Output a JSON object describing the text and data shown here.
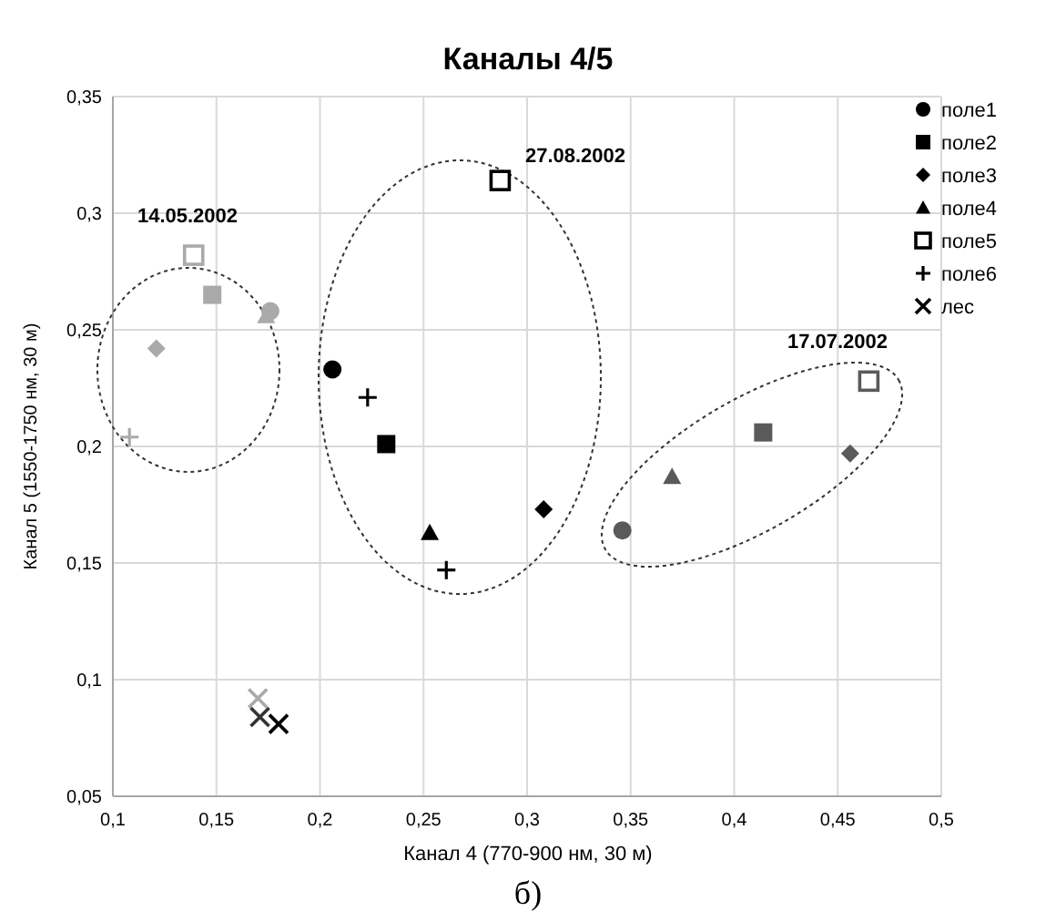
{
  "chart_data": {
    "type": "scatter",
    "title": "Каналы 4/5",
    "xlabel": "Канал 4 (770-900 нм, 30 м)",
    "ylabel": "Канал 5 (1550-1750 нм, 30 м)",
    "xlim": [
      0.1,
      0.5
    ],
    "ylim": [
      0.05,
      0.35
    ],
    "xticks": [
      {
        "value": 0.1,
        "label": "0,1"
      },
      {
        "value": 0.15,
        "label": "0,15"
      },
      {
        "value": 0.2,
        "label": "0,2"
      },
      {
        "value": 0.25,
        "label": "0,25"
      },
      {
        "value": 0.3,
        "label": "0,3"
      },
      {
        "value": 0.35,
        "label": "0,35"
      },
      {
        "value": 0.4,
        "label": "0,4"
      },
      {
        "value": 0.45,
        "label": "0,45"
      },
      {
        "value": 0.5,
        "label": "0,5"
      }
    ],
    "yticks": [
      {
        "value": 0.05,
        "label": "0,05"
      },
      {
        "value": 0.1,
        "label": "0,1"
      },
      {
        "value": 0.15,
        "label": "0,15"
      },
      {
        "value": 0.2,
        "label": "0,2"
      },
      {
        "value": 0.25,
        "label": "0,25"
      },
      {
        "value": 0.3,
        "label": "0,3"
      },
      {
        "value": 0.35,
        "label": "0,35"
      }
    ],
    "grid": true,
    "legend": "right",
    "series": [
      {
        "name": "поле1",
        "marker": "circle",
        "color": "#000000",
        "x": [
          0.176,
          0.206,
          0.346
        ],
        "values": [
          0.258,
          0.233,
          0.164
        ],
        "colors": [
          "#aaaaaa",
          "#000000",
          "#5a5a5a"
        ]
      },
      {
        "name": "поле2",
        "marker": "square",
        "color": "#000000",
        "x": [
          0.148,
          0.232,
          0.414
        ],
        "values": [
          0.265,
          0.201,
          0.206
        ],
        "colors": [
          "#aaaaaa",
          "#000000",
          "#5a5a5a"
        ]
      },
      {
        "name": "поле3",
        "marker": "diamond",
        "color": "#000000",
        "x": [
          0.121,
          0.308,
          0.456
        ],
        "values": [
          0.242,
          0.173,
          0.197
        ],
        "colors": [
          "#aaaaaa",
          "#000000",
          "#5a5a5a"
        ]
      },
      {
        "name": "поле4",
        "marker": "triangle",
        "color": "#000000",
        "x": [
          0.174,
          0.253,
          0.37
        ],
        "values": [
          0.256,
          0.163,
          0.187
        ],
        "colors": [
          "#aaaaaa",
          "#000000",
          "#5a5a5a"
        ]
      },
      {
        "name": "поле5",
        "marker": "square-open",
        "color": "#000000",
        "x": [
          0.139,
          0.287,
          0.465
        ],
        "values": [
          0.282,
          0.314,
          0.228
        ],
        "colors": [
          "#aaaaaa",
          "#000000",
          "#5a5a5a"
        ]
      },
      {
        "name": "поле6",
        "marker": "cross",
        "color": "#000000",
        "x": [
          0.108,
          0.223,
          0.261
        ],
        "values": [
          0.204,
          0.221,
          0.147
        ],
        "colors": [
          "#aaaaaa",
          "#000000",
          "#000000"
        ]
      },
      {
        "name": "лес",
        "marker": "x",
        "color": "#000000",
        "x": [
          0.17,
          0.171,
          0.18
        ],
        "values": [
          0.092,
          0.084,
          0.081
        ],
        "colors": [
          "#aaaaaa",
          "#333333",
          "#000000"
        ]
      }
    ],
    "annotations": [
      "14.05.2002",
      "27.08.2002",
      "17.07.2002",
      "б)"
    ]
  }
}
